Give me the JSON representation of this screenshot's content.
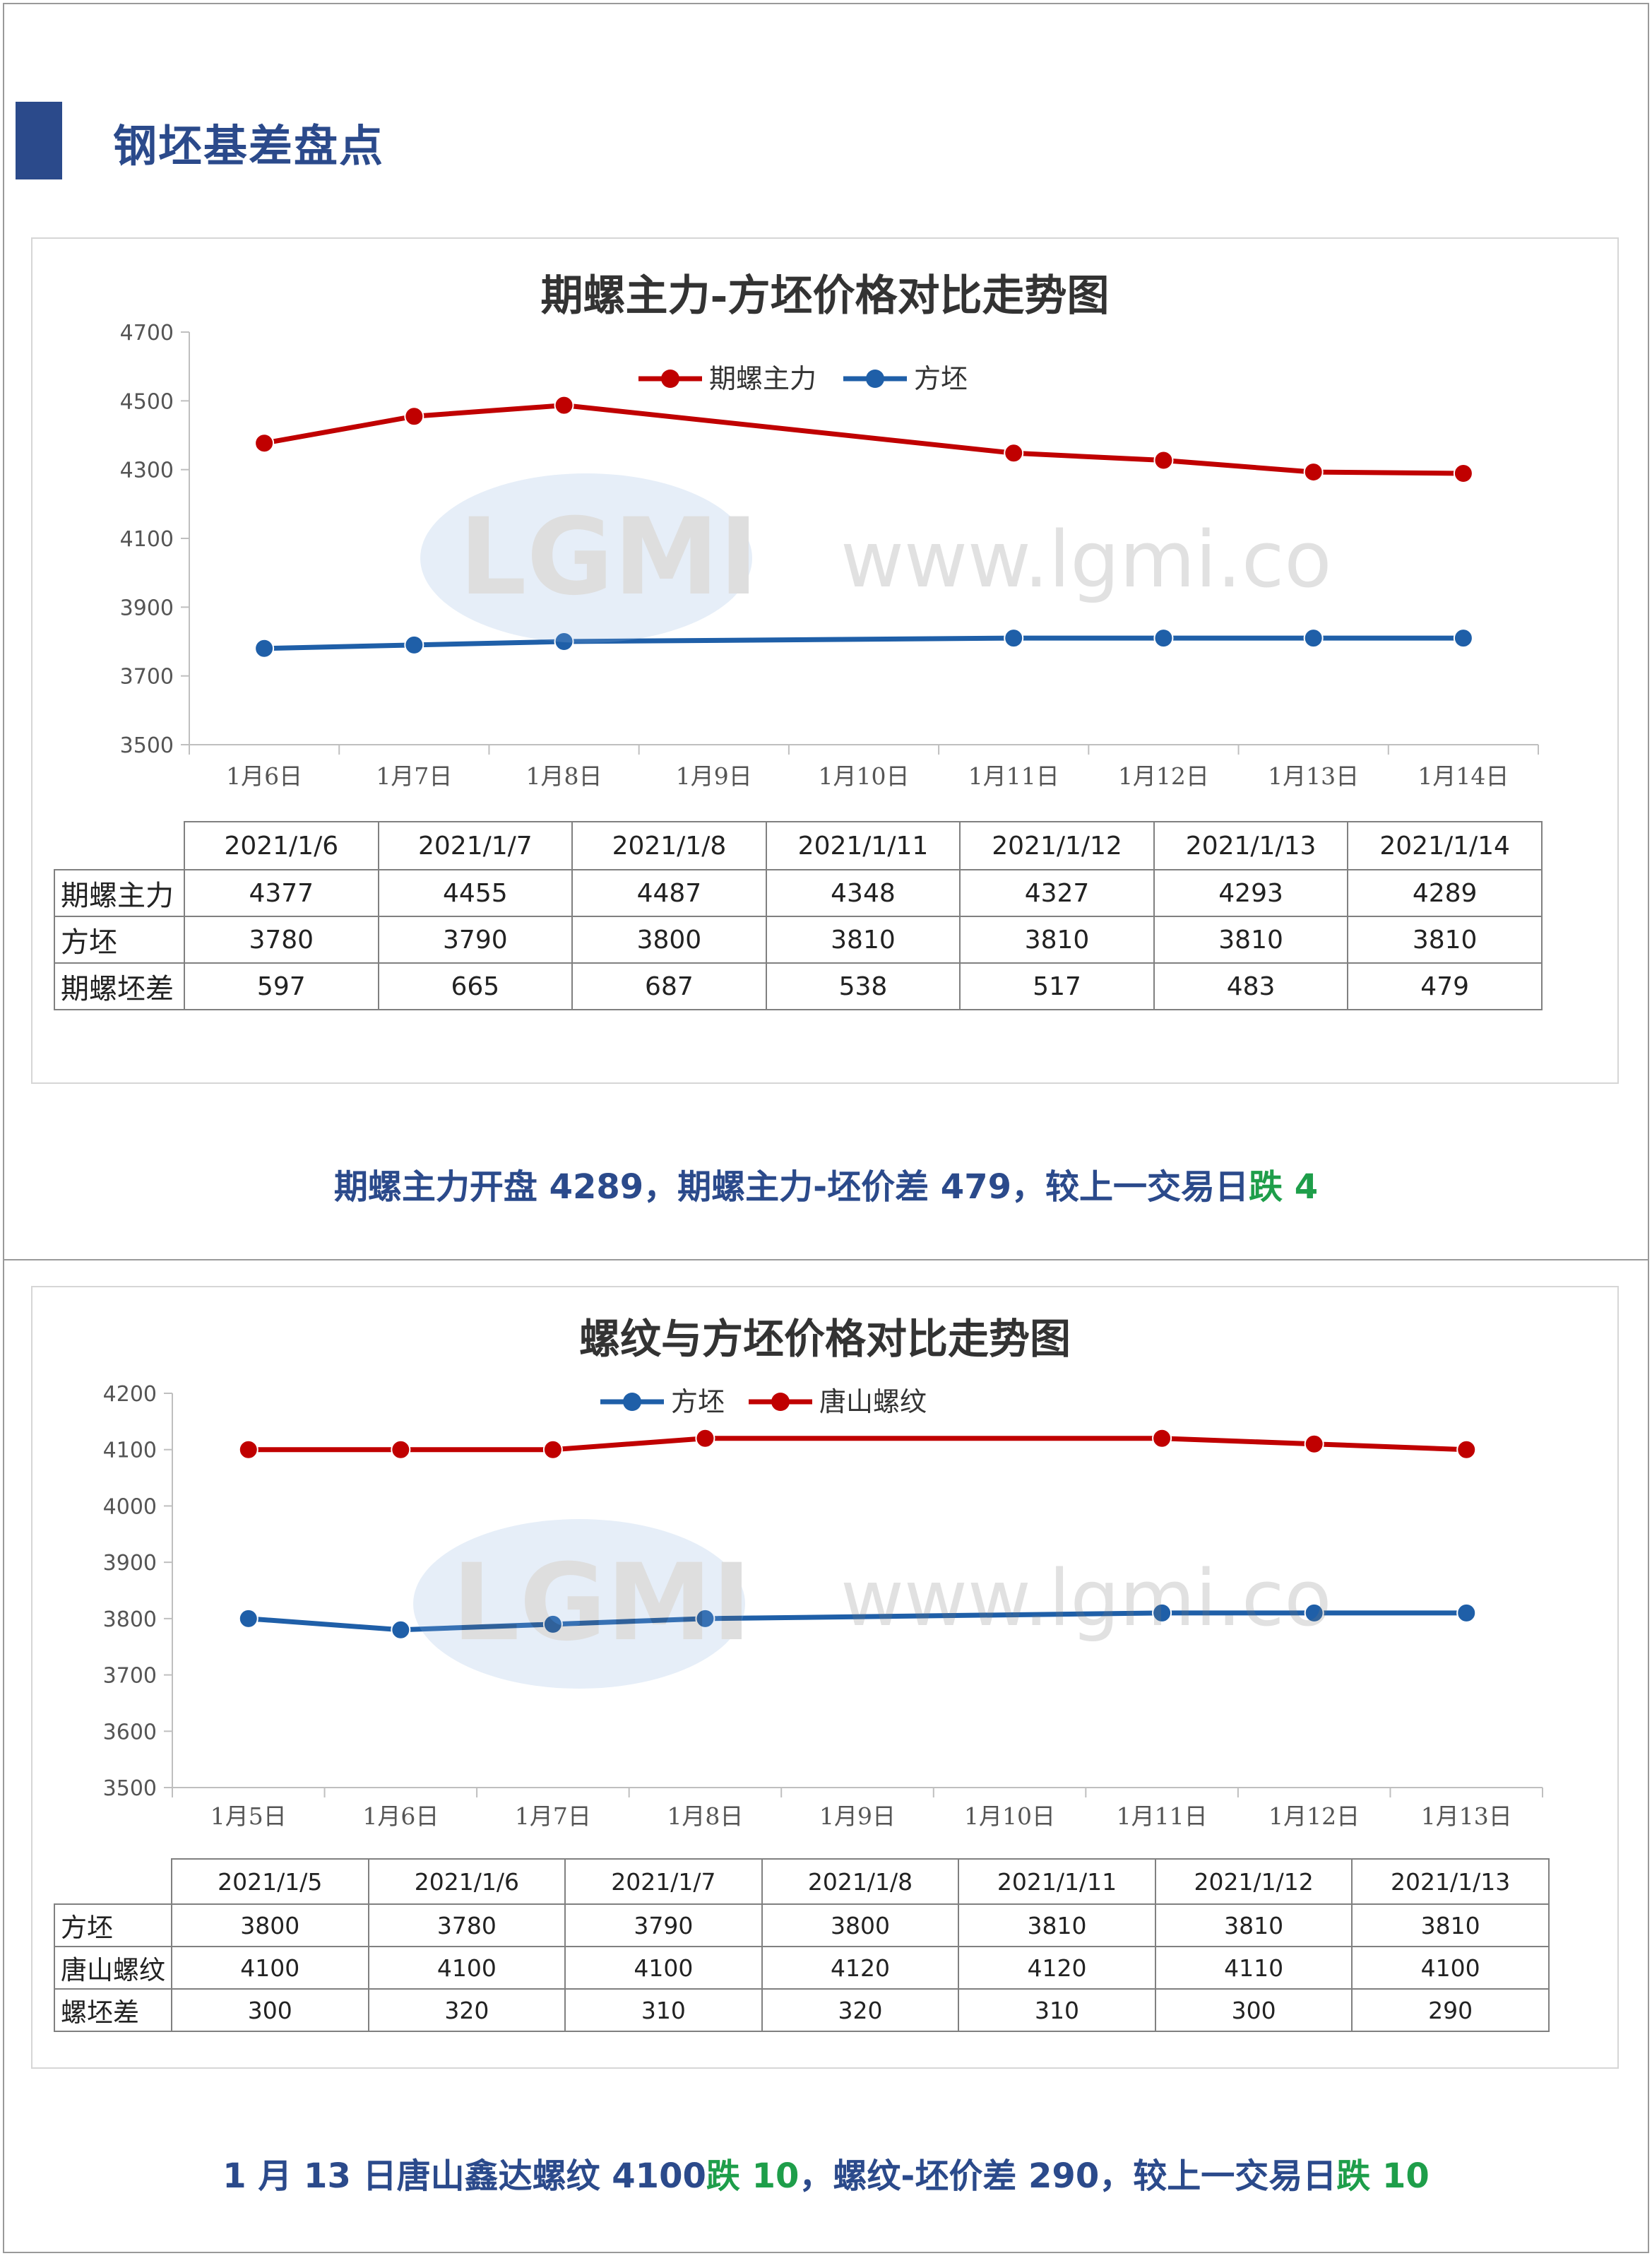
{
  "header": {
    "title": "钢坯基差盘点"
  },
  "chart_data": [
    {
      "type": "line",
      "title": "期螺主力-方坯价格对比走势图",
      "categories": [
        "1月6日",
        "1月7日",
        "1月8日",
        "1月9日",
        "1月10日",
        "1月11日",
        "1月12日",
        "1月13日",
        "1月14日"
      ],
      "series": [
        {
          "name": "期螺主力",
          "color": "#c00000",
          "values": [
            4377,
            4455,
            4487,
            null,
            null,
            4348,
            4327,
            4293,
            4289
          ]
        },
        {
          "name": "方坯",
          "color": "#1f5fa8",
          "values": [
            3780,
            3790,
            3800,
            null,
            null,
            3810,
            3810,
            3810,
            3810
          ]
        }
      ],
      "ylim": [
        3500,
        4700
      ],
      "yticks": [
        3500,
        3700,
        3900,
        4100,
        4300,
        4500,
        4700
      ],
      "legend": "top-center",
      "table": {
        "columns": [
          "2021/1/6",
          "2021/1/7",
          "2021/1/8",
          "2021/1/11",
          "2021/1/12",
          "2021/1/13",
          "2021/1/14"
        ],
        "rows": [
          {
            "label": "期螺主力",
            "values": [
              "4377",
              "4455",
              "4487",
              "4348",
              "4327",
              "4293",
              "4289"
            ]
          },
          {
            "label": "方坯",
            "values": [
              "3780",
              "3790",
              "3800",
              "3810",
              "3810",
              "3810",
              "3810"
            ]
          },
          {
            "label": "期螺坯差",
            "values": [
              "597",
              "665",
              "687",
              "538",
              "517",
              "483",
              "479"
            ]
          }
        ]
      }
    },
    {
      "type": "line",
      "title": "螺纹与方坯价格对比走势图",
      "categories": [
        "1月5日",
        "1月6日",
        "1月7日",
        "1月8日",
        "1月9日",
        "1月10日",
        "1月11日",
        "1月12日",
        "1月13日"
      ],
      "series": [
        {
          "name": "方坯",
          "color": "#1f5fa8",
          "values": [
            3800,
            3780,
            3790,
            3800,
            null,
            null,
            3810,
            3810,
            3810
          ]
        },
        {
          "name": "唐山螺纹",
          "color": "#c00000",
          "values": [
            4100,
            4100,
            4100,
            4120,
            null,
            null,
            4120,
            4110,
            4100
          ]
        }
      ],
      "ylim": [
        3500,
        4200
      ],
      "yticks": [
        3500,
        3600,
        3700,
        3800,
        3900,
        4000,
        4100,
        4200
      ],
      "legend": "top-center",
      "table": {
        "columns": [
          "2021/1/5",
          "2021/1/6",
          "2021/1/7",
          "2021/1/8",
          "2021/1/11",
          "2021/1/12",
          "2021/1/13"
        ],
        "rows": [
          {
            "label": "方坯",
            "values": [
              "3800",
              "3780",
              "3790",
              "3800",
              "3810",
              "3810",
              "3810"
            ]
          },
          {
            "label": "唐山螺纹",
            "values": [
              "4100",
              "4100",
              "4100",
              "4120",
              "4120",
              "4110",
              "4100"
            ]
          },
          {
            "label": "螺坯差",
            "values": [
              "300",
              "320",
              "310",
              "320",
              "310",
              "300",
              "290"
            ]
          }
        ]
      }
    }
  ],
  "captions": {
    "c1_main": "期螺主力开盘 4289，期螺主力-坯价差 479，较上一交易日",
    "c1_change": "跌 4",
    "c2_part1": "1 月 13 日唐山鑫达螺纹 4100",
    "c2_change1": "跌 10",
    "c2_part2": "，螺纹-坯价差 290，较上一交易日",
    "c2_change2": "跌 10"
  },
  "watermark": {
    "logo": "LGMI",
    "url": "www.lgmi.com"
  }
}
